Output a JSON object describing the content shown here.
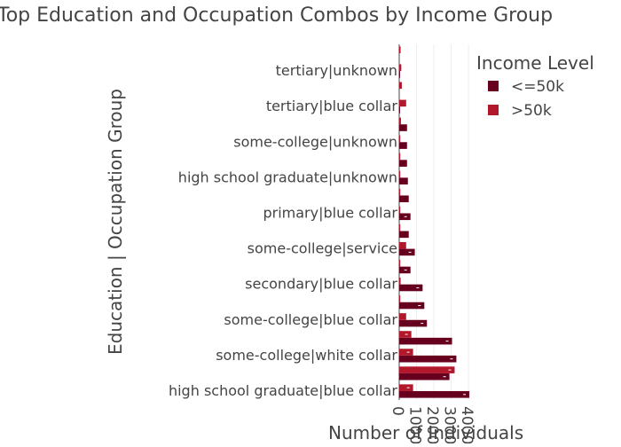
{
  "chart_data": {
    "type": "bar",
    "orientation": "horizontal",
    "title": "Top Education and Occupation Combos by Income Group",
    "xlabel": "Number of Individuals",
    "ylabel": "Education | Occupation Group",
    "legend_title": "Income Level",
    "legend_position": "top-right",
    "grid": true,
    "xlim": [
      0,
      4200
    ],
    "xticks": [
      0,
      1000,
      2000,
      3000,
      4000
    ],
    "xtick_labels": [
      "0",
      "1000",
      "2000",
      "3000",
      "4000"
    ],
    "categories": [
      "high school graduate|blue collar",
      "",
      "some-college|white collar",
      "",
      "some-college|blue collar",
      "",
      "secondary|blue collar",
      "",
      "some-college|service",
      "",
      "primary|blue collar",
      "",
      "high school graduate|unknown",
      "",
      "some-college|unknown",
      "",
      "tertiary|blue collar",
      "",
      "tertiary|unknown",
      ""
    ],
    "series": [
      {
        "name": "<=50k",
        "color": "#67001f",
        "values": [
          4050,
          2900,
          3300,
          3050,
          1600,
          1450,
          1350,
          650,
          900,
          550,
          650,
          550,
          500,
          450,
          450,
          450,
          50,
          0,
          50,
          0
        ]
      },
      {
        "name": ">50k",
        "color": "#b2182b",
        "values": [
          800,
          3200,
          800,
          700,
          400,
          60,
          80,
          60,
          400,
          60,
          60,
          60,
          60,
          60,
          60,
          100,
          400,
          150,
          120,
          80
        ]
      }
    ]
  }
}
